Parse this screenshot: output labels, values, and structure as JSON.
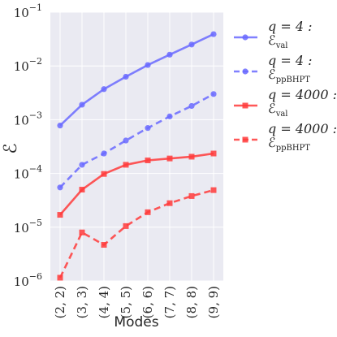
{
  "chart_data": {
    "type": "line",
    "categories": [
      "(2, 2)",
      "(3, 3)",
      "(4, 4)",
      "(5, 5)",
      "(6, 6)",
      "(7, 7)",
      "(8, 8)",
      "(9, 9)"
    ],
    "xlabel": "Modes",
    "ylabel": "ℰ",
    "yscale": "log",
    "ylim": [
      1e-06,
      0.1
    ],
    "yticks": [
      {
        "base": "10",
        "exp": "−6"
      },
      {
        "base": "10",
        "exp": "−5"
      },
      {
        "base": "10",
        "exp": "−4"
      },
      {
        "base": "10",
        "exp": "−3"
      },
      {
        "base": "10",
        "exp": "−2"
      },
      {
        "base": "10",
        "exp": "−1"
      }
    ],
    "grid": true,
    "legend_placement": "outside-right",
    "series": [
      {
        "name": "q = 4 : ℰval",
        "legend_main": "q = 4 :",
        "legend_sub_symbol": "ℰ",
        "legend_sub": "val",
        "color": "#6a6aff",
        "line_style": "solid",
        "marker": "circle",
        "values": [
          0.00078,
          0.0019,
          0.0037,
          0.0063,
          0.0104,
          0.0162,
          0.025,
          0.039
        ]
      },
      {
        "name": "q = 4 : ℰppBHPT",
        "legend_main": "q = 4 :",
        "legend_sub_symbol": "ℰ",
        "legend_sub": "ppBHPT",
        "color": "#6a6aff",
        "line_style": "dashed",
        "marker": "circle",
        "values": [
          5.5e-05,
          0.000145,
          0.000235,
          0.00041,
          0.0007,
          0.00115,
          0.0018,
          0.003
        ]
      },
      {
        "name": "q = 4000 : ℰval",
        "legend_main": "q = 4000 :",
        "legend_sub_symbol": "ℰ",
        "legend_sub": "val",
        "color": "#ff3b3b",
        "line_style": "solid",
        "marker": "square",
        "values": [
          1.7e-05,
          5e-05,
          9.8e-05,
          0.000145,
          0.000175,
          0.00019,
          0.000205,
          0.000235
        ]
      },
      {
        "name": "q = 4000 : ℰppBHPT",
        "legend_main": "q = 4000 :",
        "legend_sub_symbol": "ℰ",
        "legend_sub": "ppBHPT",
        "color": "#ff3b3b",
        "line_style": "dashed",
        "marker": "square",
        "values": [
          1.15e-06,
          8e-06,
          4.7e-06,
          1.05e-05,
          1.9e-05,
          2.8e-05,
          3.8e-05,
          4.9e-05
        ]
      }
    ]
  }
}
